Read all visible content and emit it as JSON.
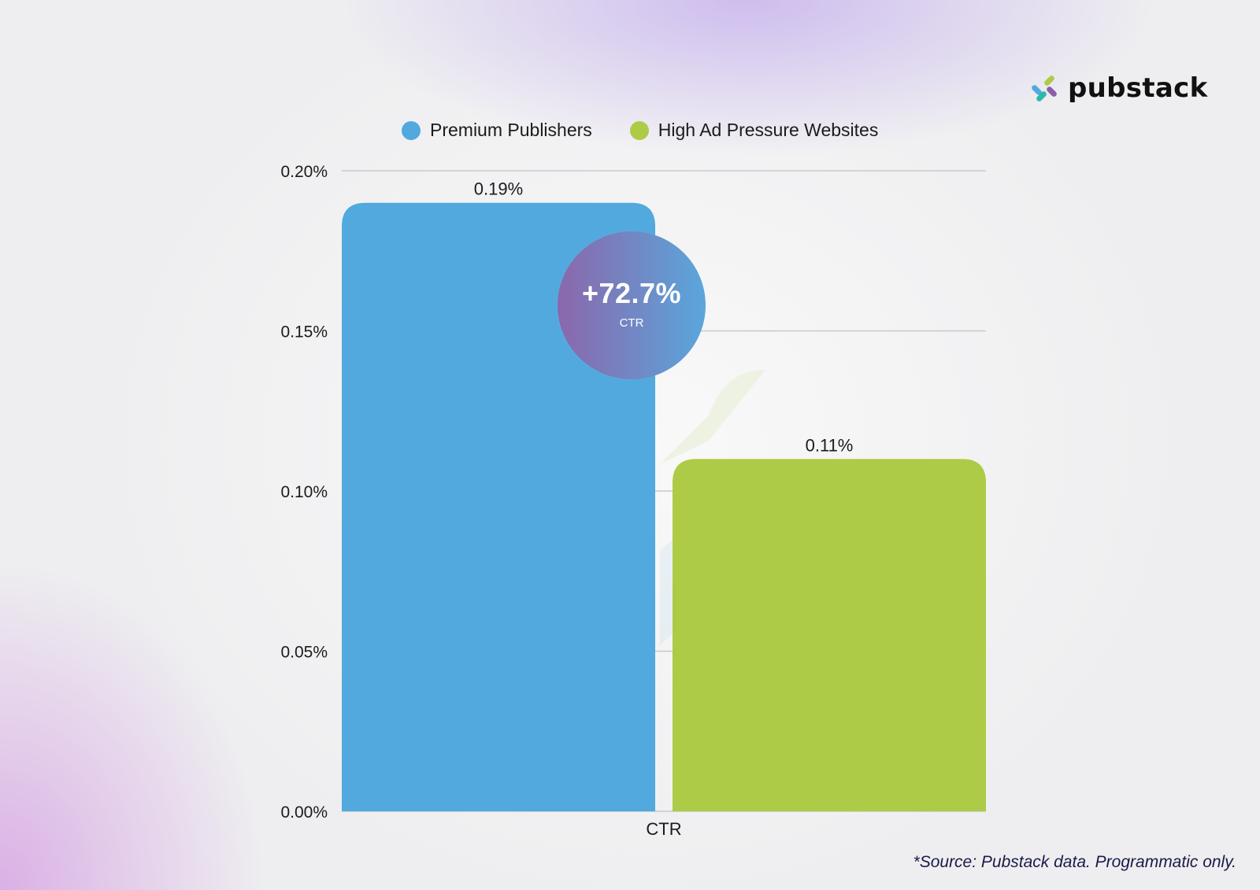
{
  "brand": {
    "name": "pubstack",
    "logo_icon": "pubstack-logo-icon"
  },
  "badge": {
    "value": "+72.7%",
    "label": "CTR"
  },
  "source": "*Source: Pubstack data. Programmatic only.",
  "colors": {
    "premium": "#51a9de",
    "high_ad_pressure": "#adcb47",
    "gridline": "#c9c9c9",
    "text": "#1b1b1b"
  },
  "chart_data": {
    "type": "bar",
    "title": "",
    "xlabel": "",
    "ylabel": "",
    "categories": [
      "CTR"
    ],
    "series": [
      {
        "name": "Premium Publishers",
        "values": [
          0.19
        ],
        "label": "0.19%",
        "color": "#51a9de"
      },
      {
        "name": "High Ad Pressure Websites",
        "values": [
          0.11
        ],
        "label": "0.11%",
        "color": "#adcb47"
      }
    ],
    "ylim": [
      0,
      0.2
    ],
    "yticks": [
      {
        "value": 0,
        "label": "0.00%"
      },
      {
        "value": 0.05,
        "label": "0.05%"
      },
      {
        "value": 0.1,
        "label": "0.10%"
      },
      {
        "value": 0.15,
        "label": "0.15%"
      },
      {
        "value": 0.2,
        "label": "0.20%"
      }
    ],
    "grid": true,
    "legend_position": "top-center"
  }
}
